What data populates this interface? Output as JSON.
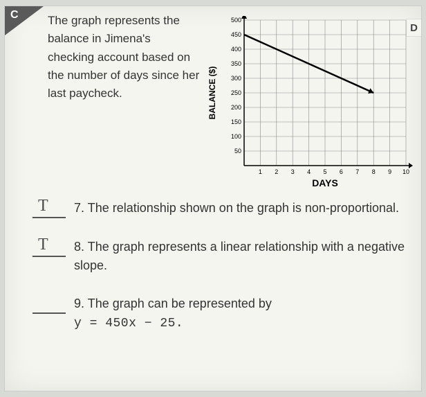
{
  "section_label_c": "C",
  "section_label_d": "D",
  "intro_text": "The graph represents the balance in Jimena's checking account based on the number of days since her last paycheck.",
  "chart": {
    "type": "line",
    "xlabel": "DAYS",
    "ylabel": "BALANCE ($)",
    "x_ticks": [
      1,
      2,
      3,
      4,
      5,
      6,
      7,
      8,
      9,
      10
    ],
    "y_ticks": [
      50,
      100,
      150,
      200,
      250,
      300,
      350,
      400,
      450,
      500
    ],
    "xlim": [
      0,
      10
    ],
    "ylim": [
      0,
      500
    ],
    "grid_color": "#888888",
    "axis_color": "#000000",
    "background_color": "#f5f5f0",
    "line_color": "#000000",
    "line_width": 2.5,
    "label_fontsize": 12,
    "tick_fontsize": 9,
    "arrow_head": true,
    "data_points": [
      {
        "x": 0,
        "y": 450
      },
      {
        "x": 8,
        "y": 250
      }
    ]
  },
  "questions": [
    {
      "number": "7.",
      "text": "The relationship shown on the graph is non-proportional.",
      "handwritten": "T"
    },
    {
      "number": "8.",
      "text": "The graph represents a linear relationship with a negative slope.",
      "handwritten": "T"
    },
    {
      "number": "9.",
      "text_prefix": "The graph can be represented by",
      "equation": "y = 450x − 25.",
      "handwritten": ""
    }
  ]
}
